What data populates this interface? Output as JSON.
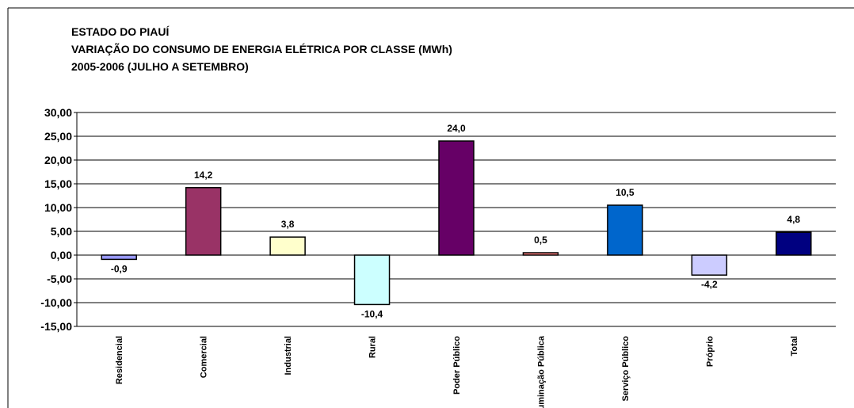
{
  "chart_data": {
    "type": "bar",
    "title": "ESTADO DO PIAUÍ",
    "subtitle": "VARIAÇÃO DO CONSUMO DE ENERGIA ELÉTRICA POR CLASSE (MWh)",
    "period": "2005-2006 (JULHO A SETEMBRO)",
    "categories": [
      "Residencial",
      "Comercial",
      "Industrial",
      "Rural",
      "Poder Público",
      "Iluminação Pública",
      "Serviço Público",
      "Próprio",
      "Total"
    ],
    "values": [
      -0.9,
      14.2,
      3.8,
      -10.4,
      24.0,
      0.5,
      10.5,
      -4.2,
      4.8
    ],
    "value_labels": [
      "-0,9",
      "14,2",
      "3,8",
      "-10,4",
      "24,0",
      "0,5",
      "10,5",
      "-4,2",
      "4,8"
    ],
    "colors": [
      "#9999ff",
      "#993366",
      "#ffffcc",
      "#ccffff",
      "#660066",
      "#ff8080",
      "#0066cc",
      "#ccccff",
      "#000080"
    ],
    "ylim": [
      -15,
      30
    ],
    "yticks": [
      {
        "value": -15,
        "label": "-15,00"
      },
      {
        "value": -10,
        "label": "-10,00"
      },
      {
        "value": -5,
        "label": "-5,00"
      },
      {
        "value": 0,
        "label": "0,00"
      },
      {
        "value": 5,
        "label": "5,00"
      },
      {
        "value": 10,
        "label": "10,00"
      },
      {
        "value": 15,
        "label": "15,00"
      },
      {
        "value": 20,
        "label": "20,00"
      },
      {
        "value": 25,
        "label": "25,00"
      },
      {
        "value": 30,
        "label": "30,00"
      }
    ],
    "grid": true
  }
}
